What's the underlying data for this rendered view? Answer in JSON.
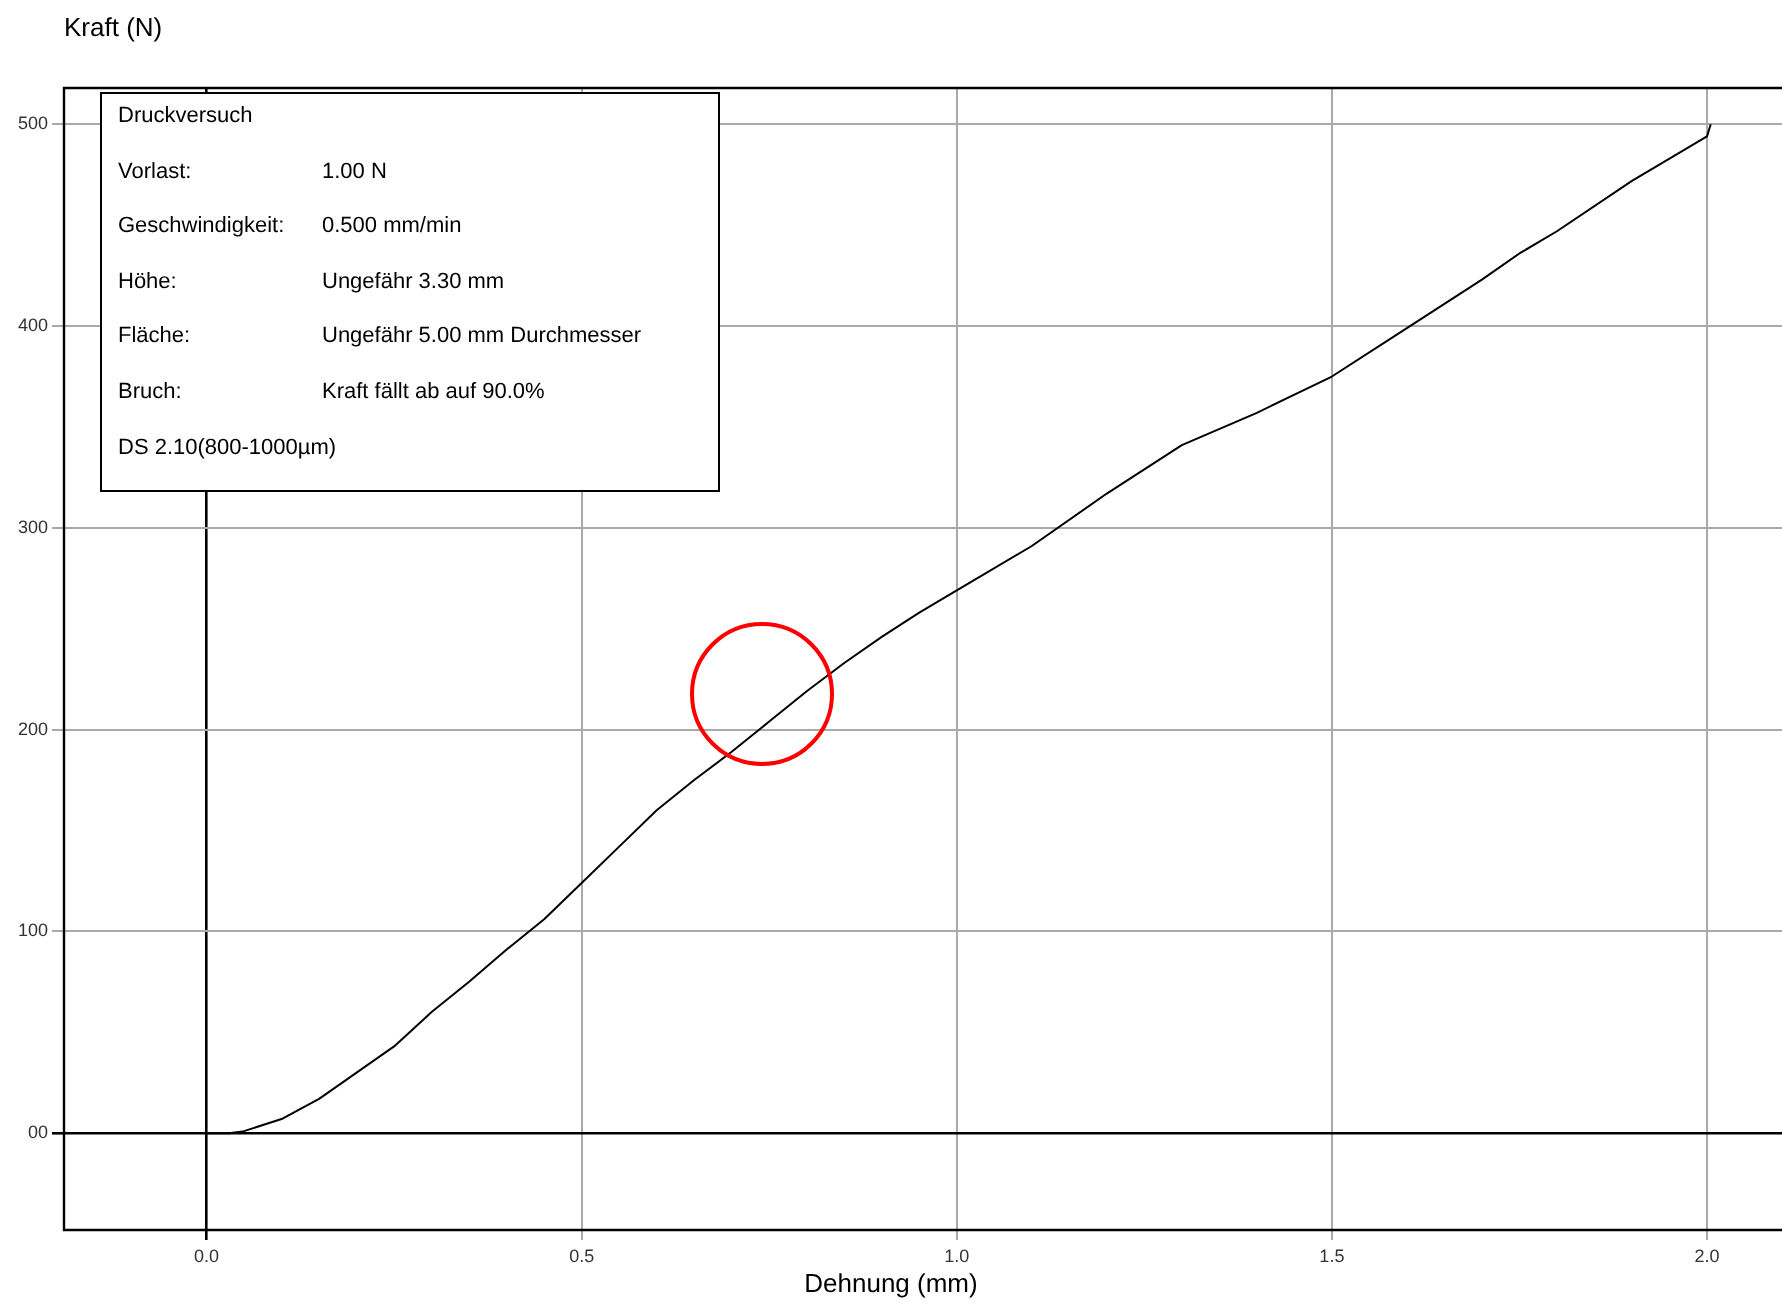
{
  "chart_data": {
    "type": "line",
    "xlabel": "Dehnung (mm)",
    "ylabel": "Kraft (N)",
    "annotations": [
      "Druckversuch",
      "Vorlast:",
      "1.00 N",
      "Geschwindigkeit:",
      "0.500 mm/min",
      "Höhe:",
      "Ungefähr 3.30 mm",
      "Fläche:",
      "Ungefähr 5.00 mm Durchmesser",
      "Bruch:",
      "Kraft fällt ab auf 90.0%",
      "DS 2.10(800-1000µm)"
    ],
    "x": [
      0,
      0.03,
      0.05,
      0.1,
      0.15,
      0.2,
      0.25,
      0.3,
      0.35,
      0.4,
      0.45,
      0.5,
      0.55,
      0.6,
      0.65,
      0.7,
      0.75,
      0.8,
      0.85,
      0.9,
      0.95,
      1.0,
      1.1,
      1.2,
      1.25,
      1.3,
      1.4,
      1.5,
      1.6,
      1.7,
      1.75,
      1.8,
      1.9,
      2.0,
      2.005
    ],
    "series": [
      {
        "color": "#000000",
        "values": [
          0,
          0,
          1,
          7,
          17,
          30,
          43,
          60,
          75,
          91,
          106,
          124,
          142,
          160,
          175,
          189,
          204,
          219,
          233,
          246,
          258,
          269,
          291,
          317,
          329,
          341,
          357,
          375,
          399,
          423,
          436,
          447,
          472,
          494,
          500
        ]
      }
    ],
    "xlim": [
      -0.19,
      2.1
    ],
    "xticks": [
      {
        "value": 0,
        "label": "0.0"
      },
      0.5,
      {
        "value": 1,
        "label": "1.0"
      },
      1.5,
      {
        "value": 2,
        "label": "2.0"
      }
    ],
    "ylim": [
      -48,
      518
    ],
    "yticks": [
      {
        "value": 0,
        "label": "00"
      },
      100,
      200,
      300,
      400,
      500
    ],
    "grid": true,
    "marker": "none",
    "line_style": "solid"
  }
}
